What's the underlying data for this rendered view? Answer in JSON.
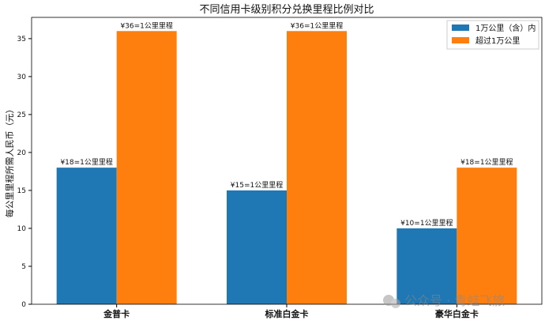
{
  "chart_data": {
    "type": "bar",
    "title": "不同信用卡级别积分兑换里程比例对比",
    "xlabel": "",
    "ylabel": "每公里里程所需人民币（元）",
    "categories": [
      "金普卡",
      "标准白金卡",
      "豪华白金卡"
    ],
    "series": [
      {
        "name": "1万公里（含）内",
        "color": "#1f77b4",
        "values": [
          18,
          15,
          10
        ],
        "labels": [
          "¥18=1公里里程",
          "¥15=1公里里程",
          "¥10=1公里里程"
        ]
      },
      {
        "name": "超过1万公里",
        "color": "#ff7f0e",
        "values": [
          36,
          36,
          18
        ],
        "labels": [
          "¥36=1公里里程",
          "¥36=1公里里程",
          "¥18=1公里里程"
        ]
      }
    ],
    "ylim": [
      0,
      37.8
    ],
    "yticks": [
      0,
      5,
      10,
      15,
      20,
      25,
      30,
      35
    ],
    "grid": false,
    "legend": "top-right"
  },
  "watermark": "公众号 · 青蛙飞旅"
}
